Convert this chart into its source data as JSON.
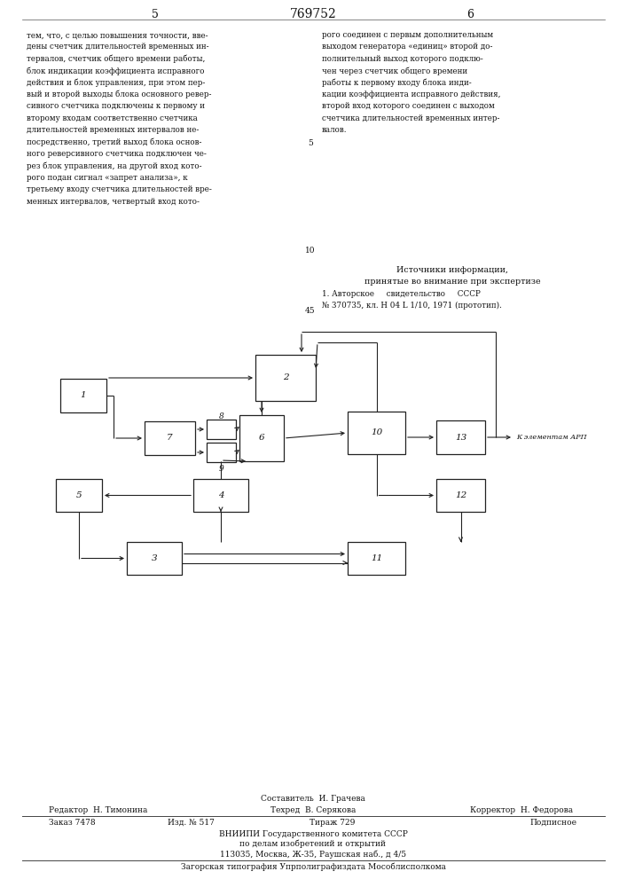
{
  "patent_number": "769752",
  "page_left": "5",
  "page_right": "6",
  "text_left": "тем, что, с целью повышения точности, вве-\nдены счетчик длительностей временных ин-\nтервалов, счетчик общего времени работы,\nблок индикации коэффициента исправного\nдействия и блок управления, при этом пер-\nвый и второй выходы блока основного ревер-\nсивного счетчика подключены к первому и\nвторому входам соответственно счетчика\nдлительностей временных интервалов не-\nпосредственно, третий выход блока основ-\nного реверсивного счетчика подключен че-\nрез блок управления, на другой вход кото-\nрого подан сигнал «запрет анализа», к\nтретьему входу счетчика длительностей вре-\nменных интервалов, четвертый вход кото-",
  "text_right": "рого соединен с первым дополнительным\nвыходом генератора «единиц» второй до-\nполнительный выход которого подклю-\nчен через счетчик общего времени\nработы к первому входу блока инди-\nкации коэффициента исправного действия,\nвторой вход которого соединен с выходом\nсчетчика длительностей временных интер-\nвалов.",
  "sources_title_line1": "Источники информации,",
  "sources_title_line2": "принятые во внимание при экспертизе",
  "sources_body_line1": "1. Авторское     свидетельство     СССР",
  "sources_body_line2": "№ 370735, кл. H 04 L 1/10, 1971 (прототип).",
  "footer_composer": "Составитель  И. Грачева",
  "footer_editor": "Редактор  Н. Тимонина",
  "footer_techred": "Техред  В. Серякова",
  "footer_corrector": "Корректор  Н. Федорова",
  "footer_order": "Заказ 7478",
  "footer_pub": "Изд. № 517",
  "footer_circ": "Тираж 729",
  "footer_sign": "Подписное",
  "footer_vnipi_line1": "ВНИИПИ Государственного комитета СССР",
  "footer_vnipi_line2": "по делам изобретений и открытий",
  "footer_vnipi_line3": "113035, Москва, Ж-35, Раушская наб., д 4/5",
  "footer_printer": "Загорская типография Упрполиграфиздата Мособлисполкома",
  "label_arp": "К элементам АРП",
  "bg_color": "#ffffff"
}
